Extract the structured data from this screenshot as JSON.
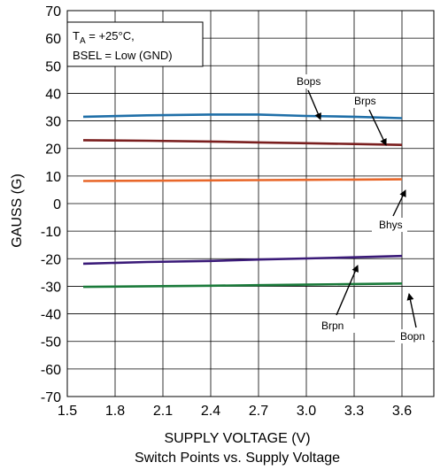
{
  "chart_data": {
    "type": "line",
    "title": "Switch Points vs. Supply Voltage",
    "xlabel": "SUPPLY VOLTAGE (V)",
    "ylabel": "GAUSS (G)",
    "xlim": [
      1.5,
      3.8
    ],
    "ylim": [
      -70,
      70
    ],
    "x_ticks": [
      "1.5",
      "1.8",
      "2.1",
      "2.4",
      "2.7",
      "3.0",
      "3.3",
      "3.6"
    ],
    "y_ticks": [
      "70",
      "60",
      "50",
      "40",
      "30",
      "20",
      "10",
      "0",
      "-10",
      "-20",
      "-30",
      "-40",
      "-50",
      "-60",
      "-70"
    ],
    "grid": true,
    "conditions": {
      "line1_prefix": "T",
      "line1_sub": "A",
      "line1_rest": " = +25°C,",
      "line2": "BSEL = Low (GND)"
    },
    "series": [
      {
        "name": "Bops",
        "color": "#1f6fa8",
        "x": [
          1.6,
          2.0,
          2.4,
          2.7,
          3.0,
          3.3,
          3.6
        ],
        "y": [
          31.5,
          32.0,
          32.3,
          32.3,
          31.8,
          31.5,
          31.0
        ]
      },
      {
        "name": "Brps",
        "color": "#7a1e1e",
        "x": [
          1.6,
          2.0,
          2.4,
          2.7,
          3.0,
          3.3,
          3.6
        ],
        "y": [
          23.0,
          22.8,
          22.5,
          22.2,
          21.9,
          21.6,
          21.3
        ]
      },
      {
        "name": "Bhys",
        "color": "#e8672a",
        "x": [
          1.6,
          2.0,
          2.4,
          2.7,
          3.0,
          3.3,
          3.6
        ],
        "y": [
          8.2,
          8.3,
          8.4,
          8.5,
          8.6,
          8.7,
          8.8
        ]
      },
      {
        "name": "Brpn",
        "color": "#3a1a78",
        "x": [
          1.6,
          2.0,
          2.4,
          2.7,
          3.0,
          3.3,
          3.6
        ],
        "y": [
          -21.8,
          -21.2,
          -20.8,
          -20.3,
          -19.9,
          -19.5,
          -19.0
        ]
      },
      {
        "name": "Bopn",
        "color": "#1a7a3a",
        "x": [
          1.6,
          2.0,
          2.4,
          2.7,
          3.0,
          3.3,
          3.6
        ],
        "y": [
          -30.2,
          -30.0,
          -29.8,
          -29.6,
          -29.4,
          -29.2,
          -29.0
        ]
      }
    ]
  }
}
